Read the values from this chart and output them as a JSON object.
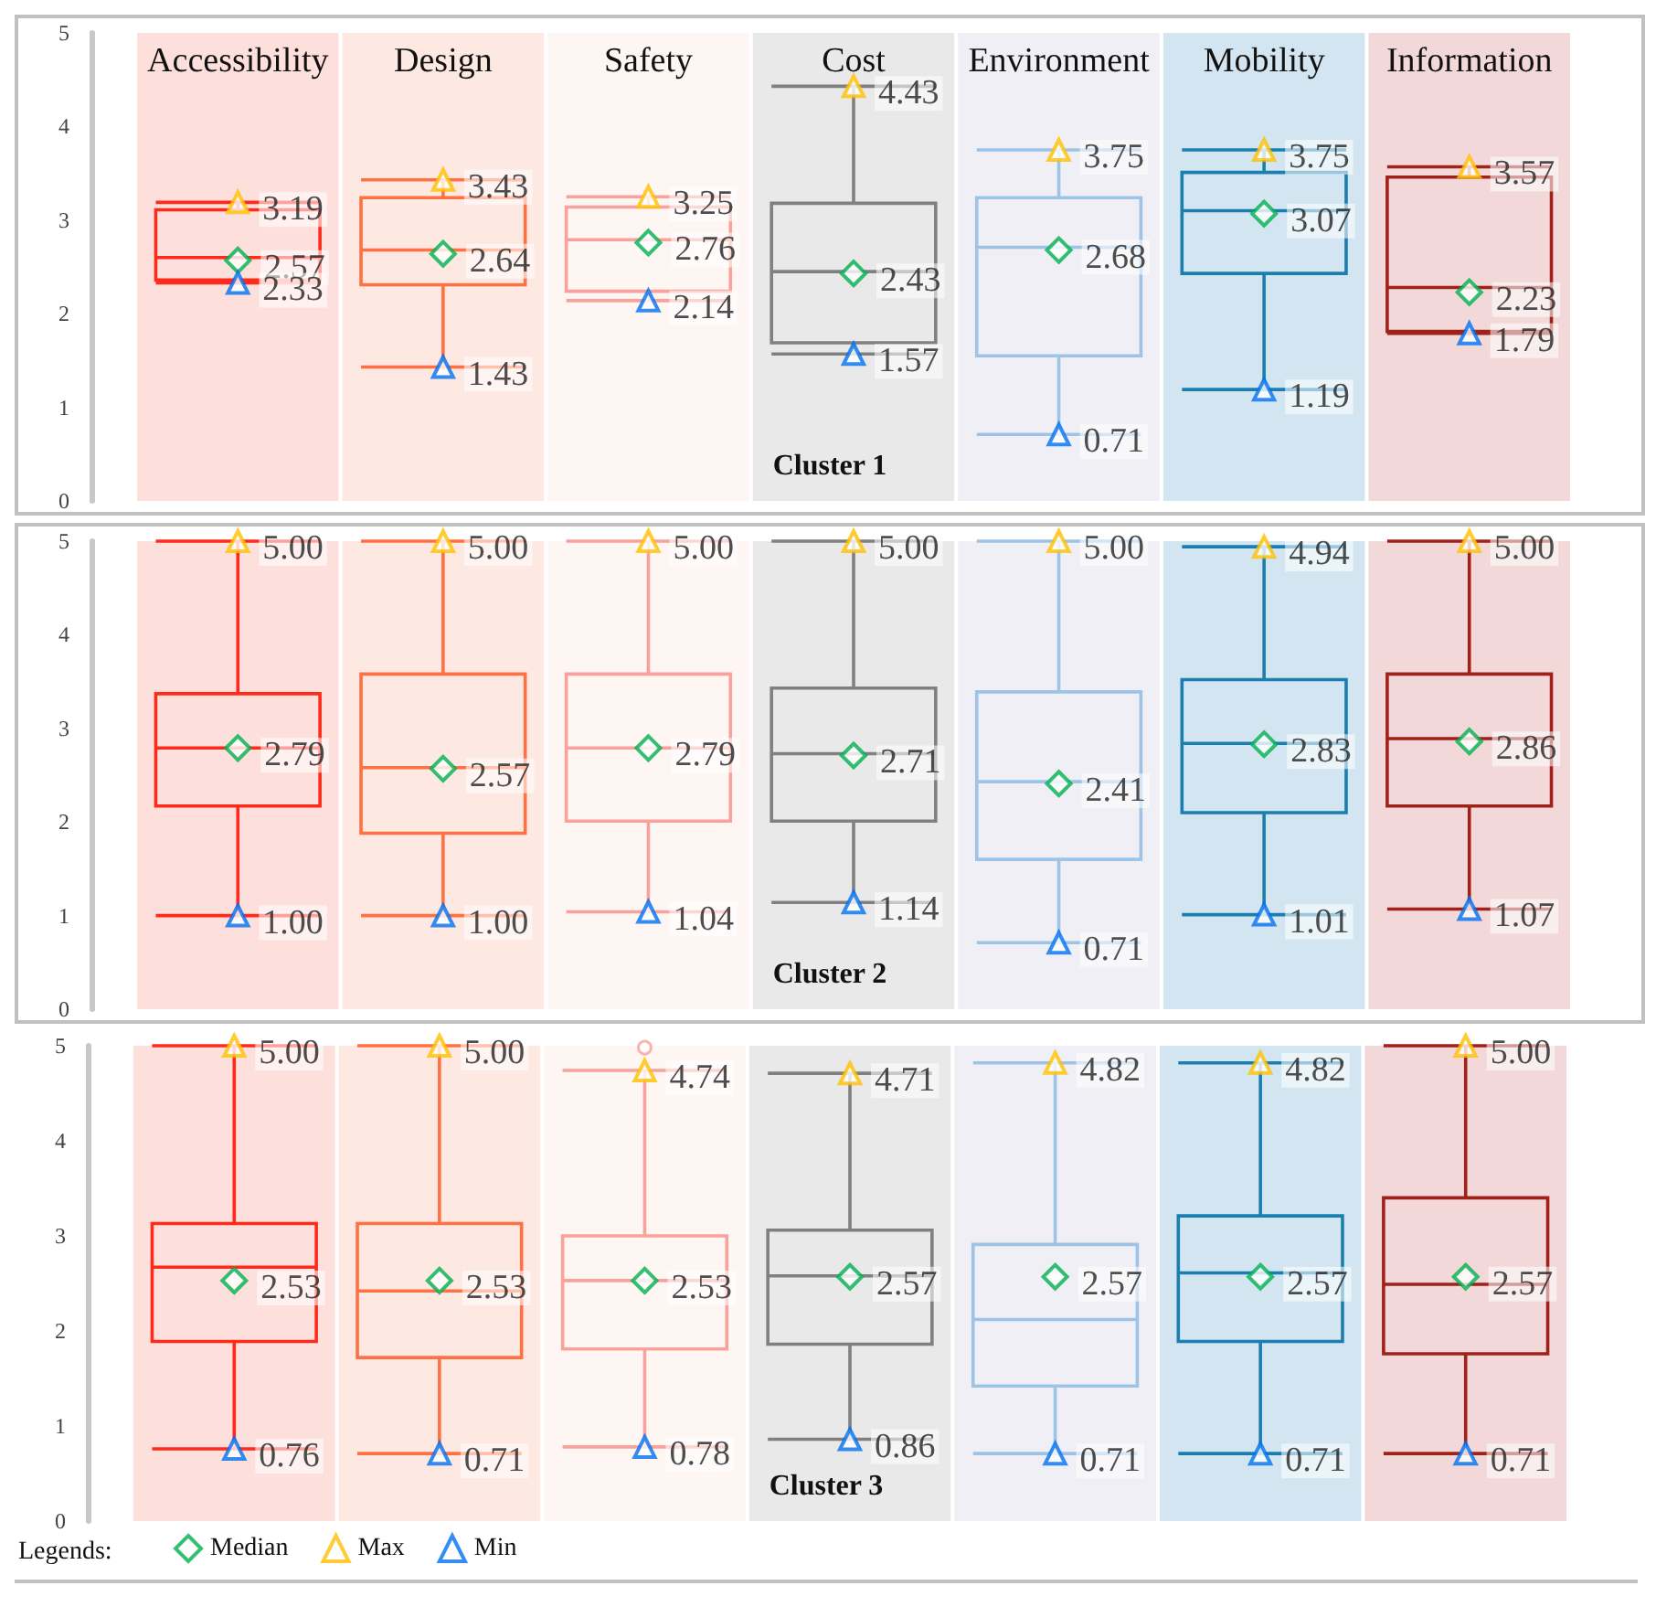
{
  "chart_data": [
    {
      "type": "box",
      "title": "Cluster 1",
      "categories": [
        "Accessibility",
        "Design",
        "Safety",
        "Cost",
        "Environment",
        "Mobility",
        "Information"
      ],
      "ylim": [
        0,
        5
      ],
      "yticks": [
        0,
        1,
        2,
        3,
        4,
        5
      ],
      "bands": [
        {
          "axis": "x",
          "from": "Accessibility",
          "to": "Accessibility",
          "color": "#fde0dc"
        },
        {
          "axis": "x",
          "from": "Design",
          "to": "Design",
          "color": "#fde8e2"
        },
        {
          "axis": "x",
          "from": "Safety",
          "to": "Safety",
          "color": "#fef6f3"
        },
        {
          "axis": "x",
          "from": "Cost",
          "to": "Cost",
          "color": "#e9e9e9"
        },
        {
          "axis": "x",
          "from": "Environment",
          "to": "Environment",
          "color": "#efeff5"
        },
        {
          "axis": "x",
          "from": "Mobility",
          "to": "Mobility",
          "color": "#d2e5f0"
        },
        {
          "axis": "x",
          "from": "Information",
          "to": "Information",
          "color": "#f2d8d8"
        }
      ],
      "series": [
        {
          "colors": [
            "#ff2a1a",
            "#ff7043",
            "#f9a19a",
            "#808080",
            "#9dc3e6",
            "#1a7fb0",
            "#a0201a"
          ],
          "boxes": [
            {
              "low": 2.33,
              "q1": 2.36,
              "median": 2.6,
              "q3": 3.11,
              "high": 3.19
            },
            {
              "low": 1.43,
              "q1": 2.31,
              "median": 2.68,
              "q3": 3.24,
              "high": 3.43
            },
            {
              "low": 2.14,
              "q1": 2.24,
              "median": 2.79,
              "q3": 3.14,
              "high": 3.25
            },
            {
              "low": 1.57,
              "q1": 1.69,
              "median": 2.45,
              "q3": 3.18,
              "high": 4.43
            },
            {
              "low": 0.71,
              "q1": 1.55,
              "median": 2.71,
              "q3": 3.24,
              "high": 3.75
            },
            {
              "low": 1.19,
              "q1": 2.43,
              "median": 3.1,
              "q3": 3.51,
              "high": 3.75
            },
            {
              "low": 1.79,
              "q1": 1.81,
              "median": 2.28,
              "q3": 3.46,
              "high": 3.57
            }
          ]
        },
        {
          "type": "scatter",
          "color": "#00b050",
          "marker": "diamond",
          "x": [
            "Accessibility",
            "Design",
            "Safety",
            "Cost",
            "Environment",
            "Mobility",
            "Information"
          ],
          "values": [
            2.57,
            2.64,
            2.76,
            2.43,
            2.68,
            3.07,
            2.23
          ],
          "value_labels": [
            "2.57",
            "2.64",
            "2.76",
            "2.43",
            "2.68",
            "3.07",
            "2.23"
          ]
        },
        {
          "type": "scatter",
          "color": "#ffc000",
          "marker": "triangle",
          "x": [
            "Accessibility",
            "Design",
            "Safety",
            "Cost",
            "Environment",
            "Mobility",
            "Information"
          ],
          "values": [
            3.19,
            3.43,
            3.25,
            4.43,
            3.75,
            3.75,
            3.57
          ],
          "value_labels": [
            "3.19",
            "3.43",
            "3.25",
            "4.43",
            "3.75",
            "3.75",
            "3.57"
          ]
        },
        {
          "type": "scatter",
          "color": "#0070f0",
          "marker": "triangle",
          "x": [
            "Accessibility",
            "Design",
            "Safety",
            "Cost",
            "Environment",
            "Mobility",
            "Information"
          ],
          "values": [
            2.33,
            1.43,
            2.14,
            1.57,
            0.71,
            1.19,
            1.79
          ],
          "value_labels": [
            "2.33",
            "1.43",
            "2.14",
            "1.57",
            "0.71",
            "1.19",
            "1.79"
          ]
        }
      ]
    },
    {
      "type": "box",
      "title": "Cluster 2",
      "categories": [
        "Accessibility",
        "Design",
        "Safety",
        "Cost",
        "Environment",
        "Mobility",
        "Information"
      ],
      "ylim": [
        0,
        5
      ],
      "yticks": [
        0,
        1,
        2,
        3,
        4,
        5
      ],
      "tick_labels": "y",
      "bands": [
        {
          "axis": "x",
          "from": "Accessibility",
          "to": "Accessibility",
          "color": "#fde0dc"
        },
        {
          "axis": "x",
          "from": "Design",
          "to": "Design",
          "color": "#fde8e2"
        },
        {
          "axis": "x",
          "from": "Safety",
          "to": "Safety",
          "color": "#fef6f3"
        },
        {
          "axis": "x",
          "from": "Cost",
          "to": "Cost",
          "color": "#e9e9e9"
        },
        {
          "axis": "x",
          "from": "Environment",
          "to": "Environment",
          "color": "#efeff5"
        },
        {
          "axis": "x",
          "from": "Mobility",
          "to": "Mobility",
          "color": "#d2e5f0"
        },
        {
          "axis": "x",
          "from": "Information",
          "to": "Information",
          "color": "#f2d8d8"
        }
      ],
      "series": [
        {
          "colors": [
            "#ff2a1a",
            "#ff7043",
            "#f9a19a",
            "#808080",
            "#9dc3e6",
            "#1a7fb0",
            "#a0201a"
          ],
          "boxes": [
            {
              "low": 1.0,
              "q1": 2.17,
              "median": 2.79,
              "q3": 3.37,
              "high": 5.0
            },
            {
              "low": 1.0,
              "q1": 1.88,
              "median": 2.58,
              "q3": 3.58,
              "high": 5.0
            },
            {
              "low": 1.04,
              "q1": 2.01,
              "median": 2.79,
              "q3": 3.58,
              "high": 5.0
            },
            {
              "low": 1.14,
              "q1": 2.01,
              "median": 2.73,
              "q3": 3.43,
              "high": 5.0
            },
            {
              "low": 0.71,
              "q1": 1.6,
              "median": 2.43,
              "q3": 3.39,
              "high": 5.0
            },
            {
              "low": 1.01,
              "q1": 2.1,
              "median": 2.84,
              "q3": 3.52,
              "high": 4.94
            },
            {
              "low": 1.07,
              "q1": 2.17,
              "median": 2.89,
              "q3": 3.58,
              "high": 5.0
            }
          ]
        },
        {
          "type": "scatter",
          "color": "#00b050",
          "marker": "diamond",
          "x": [
            "Accessibility",
            "Design",
            "Safety",
            "Cost",
            "Environment",
            "Mobility",
            "Information"
          ],
          "values": [
            2.79,
            2.57,
            2.79,
            2.71,
            2.41,
            2.83,
            2.86
          ],
          "value_labels": [
            "2.79",
            "2.57",
            "2.79",
            "2.71",
            "2.41",
            "2.83",
            "2.86"
          ]
        },
        {
          "type": "scatter",
          "color": "#ffc000",
          "marker": "triangle",
          "x": [
            "Accessibility",
            "Design",
            "Safety",
            "Cost",
            "Environment",
            "Mobility",
            "Information"
          ],
          "values": [
            5.0,
            5.0,
            5.0,
            5.0,
            5.0,
            4.94,
            5.0
          ],
          "value_labels": [
            "5.00",
            "5.00",
            "5.00",
            "5.00",
            "5.00",
            "4.94",
            "5.00"
          ]
        },
        {
          "type": "scatter",
          "color": "#0070f0",
          "marker": "triangle",
          "x": [
            "Accessibility",
            "Design",
            "Safety",
            "Cost",
            "Environment",
            "Mobility",
            "Information"
          ],
          "values": [
            1.0,
            1.0,
            1.04,
            1.14,
            0.71,
            1.01,
            1.07
          ],
          "value_labels": [
            "1.00",
            "1.00",
            "1.04",
            "1.14",
            "0.71",
            "1.01",
            "1.07"
          ]
        }
      ]
    },
    {
      "type": "box",
      "title": "Cluster 3",
      "categories": [
        "Accessibility",
        "Design",
        "Safety",
        "Cost",
        "Environment",
        "Mobility",
        "Information"
      ],
      "ylim": [
        0,
        5
      ],
      "yticks": [
        0,
        1,
        2,
        3,
        4,
        5
      ],
      "tick_labels": "y",
      "legend": "bottom left",
      "legend_title": "Legends:",
      "bands": [
        {
          "axis": "x",
          "from": "Accessibility",
          "to": "Accessibility",
          "color": "#fde0dc"
        },
        {
          "axis": "x",
          "from": "Design",
          "to": "Design",
          "color": "#fde8e2"
        },
        {
          "axis": "x",
          "from": "Safety",
          "to": "Safety",
          "color": "#fef6f3"
        },
        {
          "axis": "x",
          "from": "Cost",
          "to": "Cost",
          "color": "#e9e9e9"
        },
        {
          "axis": "x",
          "from": "Environment",
          "to": "Environment",
          "color": "#efeff5"
        },
        {
          "axis": "x",
          "from": "Mobility",
          "to": "Mobility",
          "color": "#d2e5f0"
        },
        {
          "axis": "x",
          "from": "Information",
          "to": "Information",
          "color": "#f2d8d8"
        }
      ],
      "series": [
        {
          "colors": [
            "#ff2a1a",
            "#ff7043",
            "#f9a19a",
            "#808080",
            "#9dc3e6",
            "#1a7fb0",
            "#a0201a"
          ],
          "boxes": [
            {
              "low": 0.76,
              "q1": 1.89,
              "median": 2.67,
              "q3": 3.13,
              "high": 5.0
            },
            {
              "low": 0.71,
              "q1": 1.72,
              "median": 2.42,
              "q3": 3.13,
              "high": 5.0
            },
            {
              "low": 0.78,
              "q1": 1.81,
              "median": 2.53,
              "q3": 3.0,
              "high": 4.74,
              "outliers": [
                4.98
              ]
            },
            {
              "low": 0.86,
              "q1": 1.86,
              "median": 2.58,
              "q3": 3.06,
              "high": 4.71
            },
            {
              "low": 0.71,
              "q1": 1.42,
              "median": 2.12,
              "q3": 2.91,
              "high": 4.82
            },
            {
              "low": 0.71,
              "q1": 1.89,
              "median": 2.61,
              "q3": 3.21,
              "high": 4.82
            },
            {
              "low": 0.71,
              "q1": 1.76,
              "median": 2.49,
              "q3": 3.4,
              "high": 5.0
            }
          ]
        },
        {
          "type": "scatter",
          "name": "Median",
          "color": "#00b050",
          "marker": "diamond",
          "x": [
            "Accessibility",
            "Design",
            "Safety",
            "Cost",
            "Environment",
            "Mobility",
            "Information"
          ],
          "values": [
            2.53,
            2.53,
            2.53,
            2.57,
            2.57,
            2.57,
            2.57
          ],
          "value_labels": [
            "2.53",
            "2.53",
            "2.53",
            "2.57",
            "2.57",
            "2.57",
            "2.57"
          ]
        },
        {
          "type": "scatter",
          "name": "Max",
          "color": "#ffc000",
          "marker": "triangle",
          "x": [
            "Accessibility",
            "Design",
            "Safety",
            "Cost",
            "Environment",
            "Mobility",
            "Information"
          ],
          "values": [
            5.0,
            5.0,
            4.74,
            4.71,
            4.82,
            4.82,
            5.0
          ],
          "value_labels": [
            "5.00",
            "5.00",
            "4.74",
            "4.71",
            "4.82",
            "4.82",
            "5.00"
          ]
        },
        {
          "type": "scatter",
          "name": "Min",
          "color": "#0070f0",
          "marker": "triangle",
          "x": [
            "Accessibility",
            "Design",
            "Safety",
            "Cost",
            "Environment",
            "Mobility",
            "Information"
          ],
          "values": [
            0.76,
            0.71,
            0.78,
            0.86,
            0.71,
            0.71,
            0.71
          ],
          "value_labels": [
            "0.76",
            "0.71",
            "0.78",
            "0.86",
            "0.71",
            "0.71",
            "0.71"
          ]
        }
      ]
    }
  ]
}
